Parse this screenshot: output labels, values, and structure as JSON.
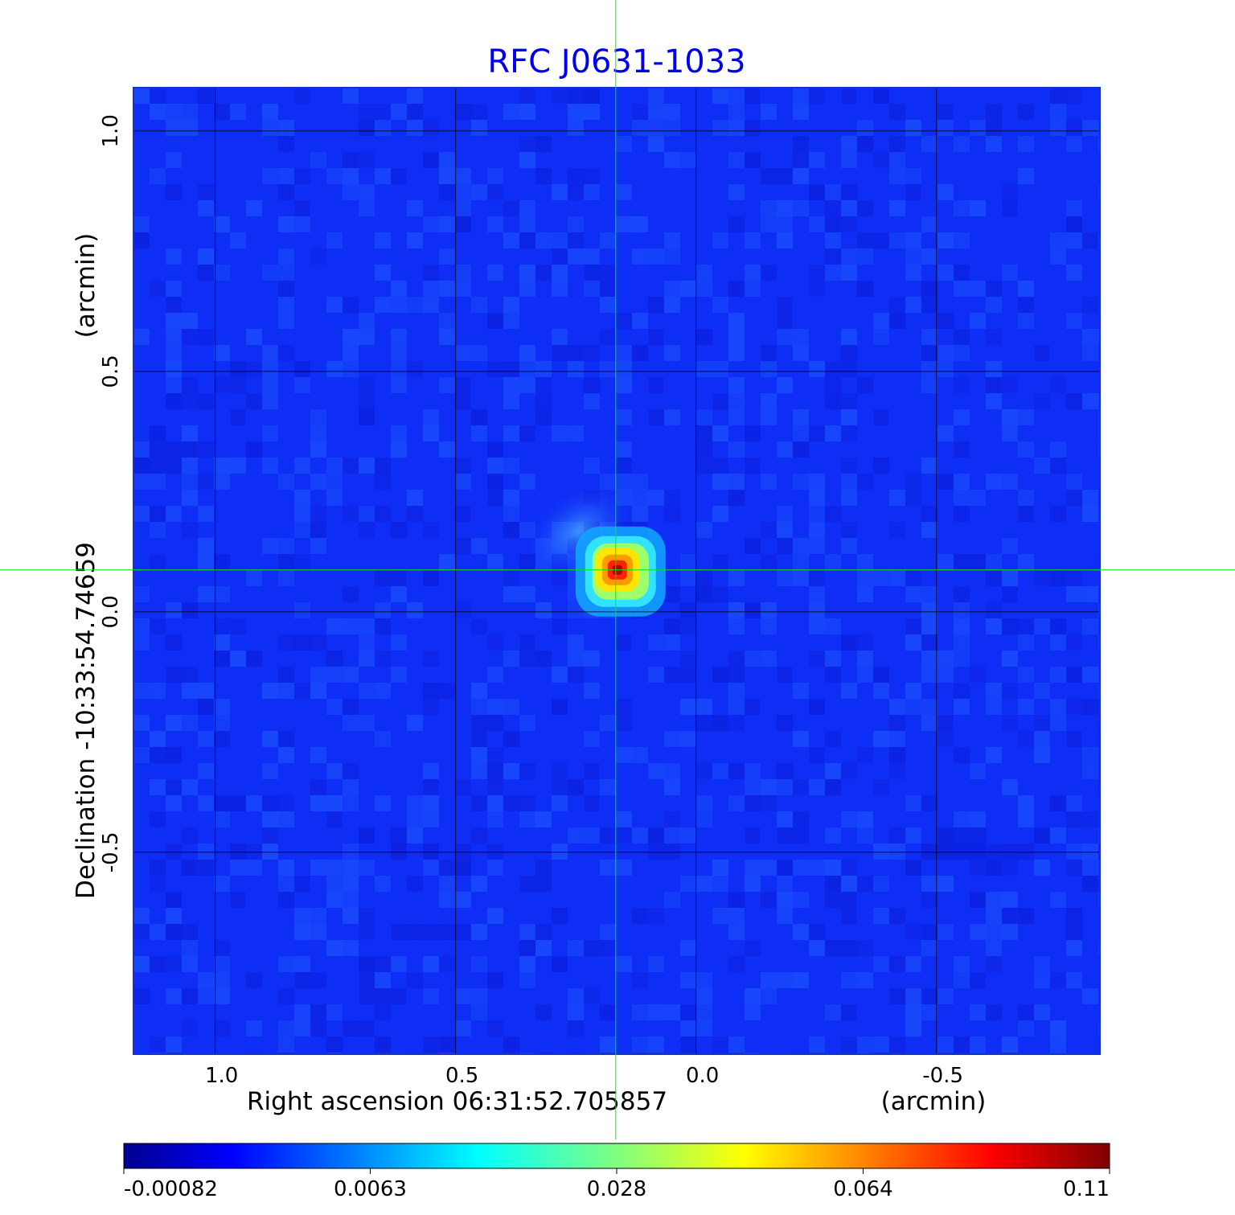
{
  "chart_data": {
    "type": "heatmap",
    "title": "RFC J0631-1033",
    "xlabel": "Right ascension  06:31:52.705857",
    "xunit": "(arcmin)",
    "ylabel": "Declination  -10:33:54.74659",
    "yunit": "(arcmin)",
    "xlim": [
      1.17,
      -0.84
    ],
    "ylim": [
      -0.92,
      1.09
    ],
    "x_ticks": [
      {
        "value": 1.0,
        "label": "1.0"
      },
      {
        "value": 0.5,
        "label": "0.5"
      },
      {
        "value": 0.0,
        "label": "0.0"
      },
      {
        "value": -0.5,
        "label": "-0.5"
      }
    ],
    "y_ticks": [
      {
        "value": 1.0,
        "label": "1.0"
      },
      {
        "value": 0.5,
        "label": "0.5"
      },
      {
        "value": 0.0,
        "label": "0.0"
      },
      {
        "value": -0.5,
        "label": "-0.5"
      }
    ],
    "grid": true,
    "crosshair": {
      "x": 0.167,
      "y": 0.087,
      "color": "#00ee00"
    },
    "source_peak": {
      "x": 0.167,
      "y": 0.087,
      "value": 0.11
    },
    "colormap": "jet",
    "colorbar": {
      "placement": "bottom",
      "range": [
        -0.00082,
        0.11
      ],
      "ticks": [
        "-0.00082",
        "0.0063",
        "0.028",
        "0.064",
        "0.11"
      ]
    }
  }
}
